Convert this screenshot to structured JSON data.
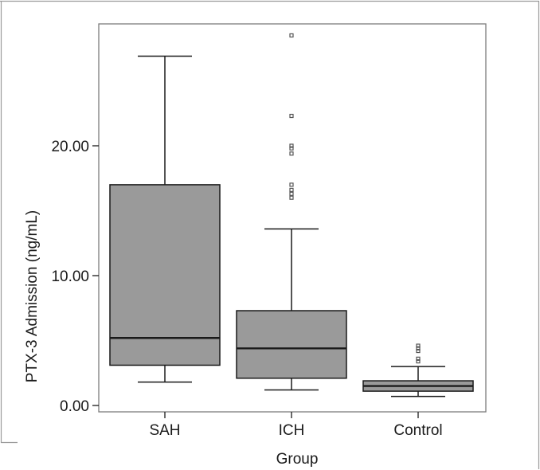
{
  "chart_data": {
    "type": "boxplot",
    "title": "",
    "xlabel": "Group",
    "ylabel": "PTX-3 Admission (ng/mL)",
    "ylim": [
      -0.4,
      29.0
    ],
    "yticks": [
      {
        "value": 0,
        "label": "0.00"
      },
      {
        "value": 10,
        "label": "10.00"
      },
      {
        "value": 20,
        "label": "20.00"
      }
    ],
    "categories": [
      "SAH",
      "ICH",
      "Control"
    ],
    "grid": false,
    "colors": {
      "box_fill": "#9a9a9a",
      "line": "#1a1a1a",
      "frame": "#7d7d7d",
      "outlier": "#555555"
    },
    "boxes": [
      {
        "category": "SAH",
        "whisker_low": 1.8,
        "q1": 3.1,
        "median": 5.2,
        "q3": 17.0,
        "whisker_high": 26.9,
        "outliers": []
      },
      {
        "category": "ICH",
        "whisker_low": 1.2,
        "q1": 2.1,
        "median": 4.4,
        "q3": 7.3,
        "whisker_high": 13.6,
        "outliers": [
          16.0,
          16.3,
          16.6,
          17.0,
          19.4,
          19.8,
          20.0,
          22.3,
          28.5
        ]
      },
      {
        "category": "Control",
        "whisker_low": 0.7,
        "q1": 1.1,
        "median": 1.5,
        "q3": 1.9,
        "whisker_high": 3.0,
        "outliers": [
          3.4,
          3.6,
          4.2,
          4.4,
          4.6
        ]
      }
    ]
  }
}
